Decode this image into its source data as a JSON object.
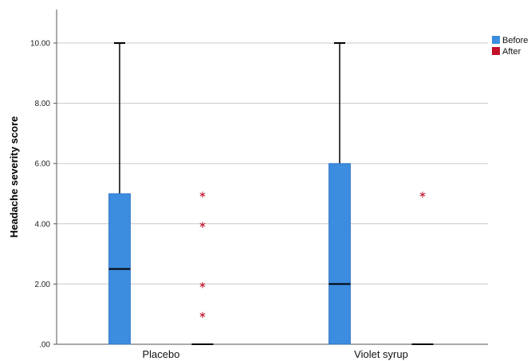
{
  "chart_data": {
    "type": "boxplot",
    "xlabel": "",
    "ylabel": "Headache severity score",
    "ylim": [
      0,
      11
    ],
    "yticks": [
      ".00",
      "2.00",
      "4.00",
      "6.00",
      "8.00",
      "10.00"
    ],
    "ytick_values": [
      0,
      2,
      4,
      6,
      8,
      10
    ],
    "grid": true,
    "legend_position": "top-right",
    "categories": [
      "Placebo",
      "Violet syrup"
    ],
    "series": [
      {
        "name": "Before",
        "color": "#3c8de0",
        "boxes": [
          {
            "category": "Placebo",
            "min": 0,
            "q1": 0,
            "median": 2.5,
            "q3": 5,
            "max": 10,
            "outliers": []
          },
          {
            "category": "Violet syrup",
            "min": 0,
            "q1": 0,
            "median": 2,
            "q3": 6,
            "max": 10,
            "outliers": []
          }
        ]
      },
      {
        "name": "After",
        "color": "#c0102b",
        "boxes": [
          {
            "category": "Placebo",
            "min": 0,
            "q1": 0,
            "median": 0,
            "q3": 0,
            "max": 0,
            "outliers": [
              5,
              4,
              2,
              1
            ]
          },
          {
            "category": "Violet syrup",
            "min": 0,
            "q1": 0,
            "median": 0,
            "q3": 0,
            "max": 0,
            "outliers": [
              5
            ]
          }
        ]
      }
    ]
  }
}
